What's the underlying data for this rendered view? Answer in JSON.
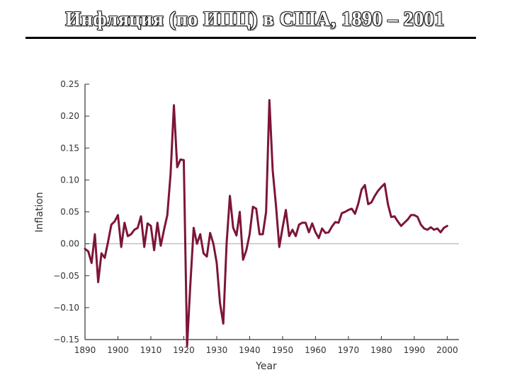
{
  "slide": {
    "title": "Инфляция (по ИПЦ) в США, 1890 – 2001"
  },
  "colors": {
    "series": "#7d1538",
    "axis": "#333333",
    "zero_line": "#aaaaaa"
  },
  "chart_data": {
    "type": "line",
    "title": "",
    "xlabel": "Year",
    "ylabel": "Inflation",
    "xlim": [
      1890,
      2001
    ],
    "ylim": [
      -0.15,
      0.25
    ],
    "grid": false,
    "x_ticks": [
      1890,
      1900,
      1910,
      1920,
      1930,
      1940,
      1950,
      1960,
      1970,
      1980,
      1990,
      2000
    ],
    "x_tick_labels": [
      "1890",
      "1900",
      "1910",
      "1920",
      "1930",
      "1940",
      "1950",
      "1960",
      "1970",
      "1980",
      "1990",
      "2000"
    ],
    "y_ticks": [
      0.25,
      0.2,
      0.15,
      0.1,
      0.05,
      0.0,
      -0.05,
      -0.1,
      -0.15
    ],
    "y_tick_labels": [
      "0.25",
      "0.20",
      "0.15",
      "0.10",
      "0.05",
      "0.00",
      "−0.05",
      "−0.10",
      "−0.15"
    ],
    "reference_line_y": 0,
    "series": [
      {
        "points": [
          [
            1890,
            -0.008
          ],
          [
            1891,
            -0.012
          ],
          [
            1892,
            -0.03
          ],
          [
            1893,
            0.015
          ],
          [
            1894,
            -0.06
          ],
          [
            1895,
            -0.015
          ],
          [
            1896,
            -0.022
          ],
          [
            1897,
            0.003
          ],
          [
            1898,
            0.03
          ],
          [
            1899,
            0.035
          ],
          [
            1900,
            0.045
          ],
          [
            1901,
            -0.005
          ],
          [
            1902,
            0.033
          ],
          [
            1903,
            0.012
          ],
          [
            1904,
            0.015
          ],
          [
            1905,
            0.022
          ],
          [
            1906,
            0.025
          ],
          [
            1907,
            0.043
          ],
          [
            1908,
            -0.005
          ],
          [
            1909,
            0.032
          ],
          [
            1910,
            0.028
          ],
          [
            1911,
            -0.01
          ],
          [
            1912,
            0.033
          ],
          [
            1913,
            -0.003
          ],
          [
            1914,
            0.022
          ],
          [
            1915,
            0.045
          ],
          [
            1916,
            0.11
          ],
          [
            1917,
            0.217
          ],
          [
            1918,
            0.12
          ],
          [
            1919,
            0.132
          ],
          [
            1920,
            0.131
          ],
          [
            1921,
            -0.16
          ],
          [
            1922,
            -0.063
          ],
          [
            1923,
            0.025
          ],
          [
            1924,
            0.0
          ],
          [
            1925,
            0.015
          ],
          [
            1926,
            -0.015
          ],
          [
            1927,
            -0.02
          ],
          [
            1928,
            0.017
          ],
          [
            1929,
            0.0
          ],
          [
            1930,
            -0.03
          ],
          [
            1931,
            -0.093
          ],
          [
            1932,
            -0.125
          ],
          [
            1933,
            0.0
          ],
          [
            1934,
            0.075
          ],
          [
            1935,
            0.025
          ],
          [
            1936,
            0.013
          ],
          [
            1937,
            0.05
          ],
          [
            1938,
            -0.025
          ],
          [
            1939,
            -0.01
          ],
          [
            1940,
            0.015
          ],
          [
            1941,
            0.058
          ],
          [
            1942,
            0.055
          ],
          [
            1943,
            0.015
          ],
          [
            1944,
            0.015
          ],
          [
            1945,
            0.05
          ],
          [
            1946,
            0.225
          ],
          [
            1947,
            0.115
          ],
          [
            1948,
            0.06
          ],
          [
            1949,
            -0.005
          ],
          [
            1950,
            0.025
          ],
          [
            1951,
            0.053
          ],
          [
            1952,
            0.012
          ],
          [
            1953,
            0.022
          ],
          [
            1954,
            0.012
          ],
          [
            1955,
            0.03
          ],
          [
            1956,
            0.033
          ],
          [
            1957,
            0.033
          ],
          [
            1958,
            0.018
          ],
          [
            1959,
            0.032
          ],
          [
            1960,
            0.018
          ],
          [
            1961,
            0.009
          ],
          [
            1962,
            0.024
          ],
          [
            1963,
            0.017
          ],
          [
            1964,
            0.018
          ],
          [
            1965,
            0.027
          ],
          [
            1966,
            0.034
          ],
          [
            1967,
            0.033
          ],
          [
            1968,
            0.048
          ],
          [
            1969,
            0.05
          ],
          [
            1970,
            0.053
          ],
          [
            1971,
            0.055
          ],
          [
            1972,
            0.047
          ],
          [
            1973,
            0.063
          ],
          [
            1974,
            0.085
          ],
          [
            1975,
            0.092
          ],
          [
            1976,
            0.062
          ],
          [
            1977,
            0.065
          ],
          [
            1978,
            0.075
          ],
          [
            1979,
            0.083
          ],
          [
            1980,
            0.089
          ],
          [
            1981,
            0.094
          ],
          [
            1982,
            0.062
          ],
          [
            1983,
            0.042
          ],
          [
            1984,
            0.043
          ],
          [
            1985,
            0.035
          ],
          [
            1986,
            0.028
          ],
          [
            1987,
            0.033
          ],
          [
            1988,
            0.038
          ],
          [
            1989,
            0.045
          ],
          [
            1990,
            0.045
          ],
          [
            1991,
            0.042
          ],
          [
            1992,
            0.03
          ],
          [
            1993,
            0.024
          ],
          [
            1994,
            0.022
          ],
          [
            1995,
            0.026
          ],
          [
            1996,
            0.022
          ],
          [
            1997,
            0.024
          ],
          [
            1998,
            0.018
          ],
          [
            1999,
            0.025
          ],
          [
            2000,
            0.028
          ]
        ]
      }
    ]
  }
}
